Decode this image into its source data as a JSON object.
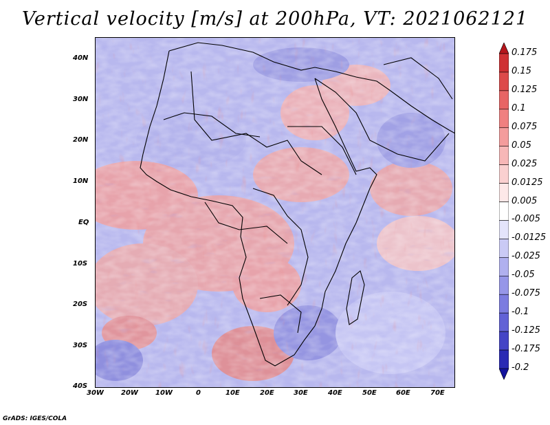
{
  "title": "Vertical velocity [m/s] at 200hPa, VT: 2021062121",
  "footer": "GrADS: IGES/COLA",
  "map": {
    "lat_labels": [
      "40N",
      "30N",
      "20N",
      "10N",
      "EQ",
      "10S",
      "20S",
      "30S",
      "40S"
    ],
    "lon_labels": [
      "30W",
      "20W",
      "10W",
      "0",
      "10E",
      "20E",
      "30E",
      "40E",
      "50E",
      "60E",
      "70E"
    ]
  },
  "colorbar": {
    "labels": [
      "0.175",
      "0.15",
      "0.125",
      "0.1",
      "0.075",
      "0.05",
      "0.025",
      "0.0125",
      "0.005",
      "-0.005",
      "-0.0125",
      "-0.025",
      "-0.05",
      "-0.075",
      "-0.1",
      "-0.125",
      "-0.175",
      "-0.2"
    ],
    "colors": [
      "#b5161c",
      "#cf3033",
      "#dd4a4a",
      "#e86565",
      "#f08080",
      "#f49c9c",
      "#f7b7b7",
      "#fad0d0",
      "#fde8e8",
      "#ffffff",
      "#e4e4fb",
      "#cacaf5",
      "#b0b0ef",
      "#9696e8",
      "#7c7ce0",
      "#6262d6",
      "#4444c6",
      "#2a2ab4",
      "#13139c"
    ]
  }
}
